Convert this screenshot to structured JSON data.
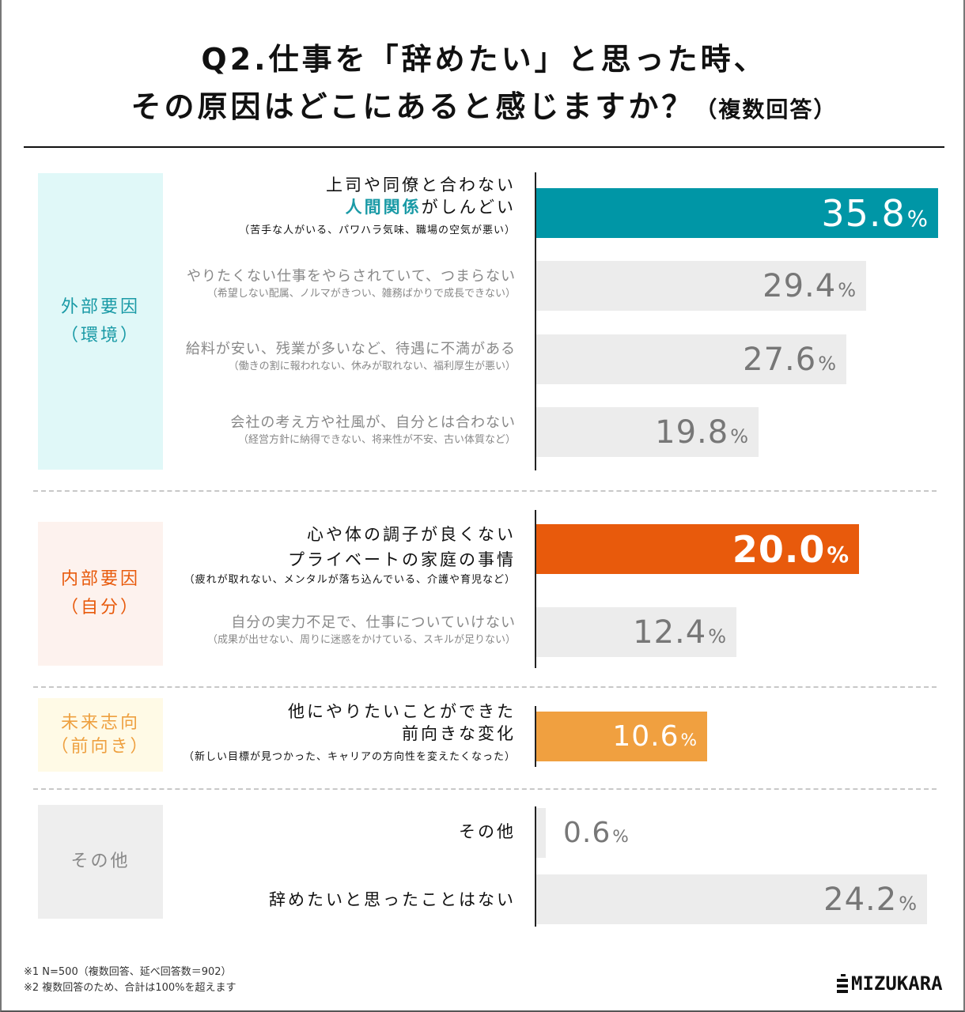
{
  "title": {
    "line1": "Q2.仕事を「辞めたい」と思った時、",
    "line2": "その原因はどこにあると感じますか？",
    "line2_sub": "（複数回答）"
  },
  "categories": [
    {
      "name": "外部要因",
      "sub": "（環境）",
      "color": "#1a9aa6",
      "bg": "#e0f8f8"
    },
    {
      "name": "内部要因",
      "sub": "（自分）",
      "color": "#e85a0c",
      "bg": "#fdf2ee"
    },
    {
      "name": "未来志向",
      "sub": "（前向き）",
      "color": "#eea040",
      "bg": "#fffae6"
    },
    {
      "name": "その他",
      "sub": "",
      "color": "#888888",
      "bg": "#eeeeee"
    }
  ],
  "items": [
    {
      "line1": "上司や同僚と合わない",
      "line2_hl": "人間関係",
      "line2_rest": "がしんどい",
      "detail": "（苦手な人がいる、パワハラ気味、職場の空気が悪い）",
      "value": "35.8",
      "pct": "%"
    },
    {
      "line1": "やりたくない仕事をやらされていて、つまらない",
      "detail": "（希望しない配属、ノルマがきつい、雑務ばかりで成長できない）",
      "value": "29.4",
      "pct": "%"
    },
    {
      "line1": "給料が安い、残業が多いなど、待遇に不満がある",
      "detail": "（働きの割に報われない、休みが取れない、福利厚生が悪い）",
      "value": "27.6",
      "pct": "%"
    },
    {
      "line1": "会社の考え方や社風が、自分とは合わない",
      "detail": "（経営方針に納得できない、将来性が不安、古い体質など）",
      "value": "19.8",
      "pct": "%"
    },
    {
      "line1": "心や体の調子が良くない",
      "line2": "プライベートの家庭の事情",
      "detail": "（疲れが取れない、メンタルが落ち込んでいる、介護や育児など）",
      "value": "20.0",
      "pct": "%"
    },
    {
      "line1": "自分の実力不足で、仕事についていけない",
      "detail": "（成果が出せない、周りに迷惑をかけている、スキルが足りない）",
      "value": "12.4",
      "pct": "%"
    },
    {
      "line1": "他にやりたいことができた",
      "line2": "前向きな変化",
      "detail": "（新しい目標が見つかった、キャリアの方向性を変えたくなった）",
      "value": "10.6",
      "pct": "%"
    },
    {
      "line1": "その他",
      "value": "0.6",
      "pct": "%"
    },
    {
      "line1": "辞めたいと思ったことはない",
      "value": "24.2",
      "pct": "%"
    }
  ],
  "chart_data": {
    "type": "bar",
    "orientation": "horizontal",
    "title": "Q2.仕事を「辞めたい」と思った時、その原因はどこにあると感じますか？（複数回答）",
    "categories": [
      "上司や同僚と合わない人間関係がしんどい",
      "やりたくない仕事をやらされていて、つまらない",
      "給料が安い、残業が多いなど、待遇に不満がある",
      "会社の考え方や社風が、自分とは合わない",
      "心や体の調子が良くない プライベートの家庭の事情",
      "自分の実力不足で、仕事についていけない",
      "他にやりたいことができた 前向きな変化",
      "その他",
      "辞めたいと思ったことはない"
    ],
    "values": [
      35.8,
      29.4,
      27.6,
      19.8,
      20.0,
      12.4,
      10.6,
      0.6,
      24.2
    ],
    "groups": [
      "外部要因（環境）",
      "外部要因（環境）",
      "外部要因（環境）",
      "外部要因（環境）",
      "内部要因（自分）",
      "内部要因（自分）",
      "未来志向（前向き）",
      "その他",
      "その他"
    ],
    "unit": "%",
    "highlight_colors": {
      "top_external": "#0096a6",
      "top_internal": "#e85a0c",
      "future": "#f0a040",
      "neutral": "#ececec"
    }
  },
  "footnotes": {
    "note1": "※1 N=500（複数回答、延べ回答数＝902）",
    "note2": "※2 複数回答のため、合計は100%を超えます"
  },
  "logo": "MIZUKARA"
}
